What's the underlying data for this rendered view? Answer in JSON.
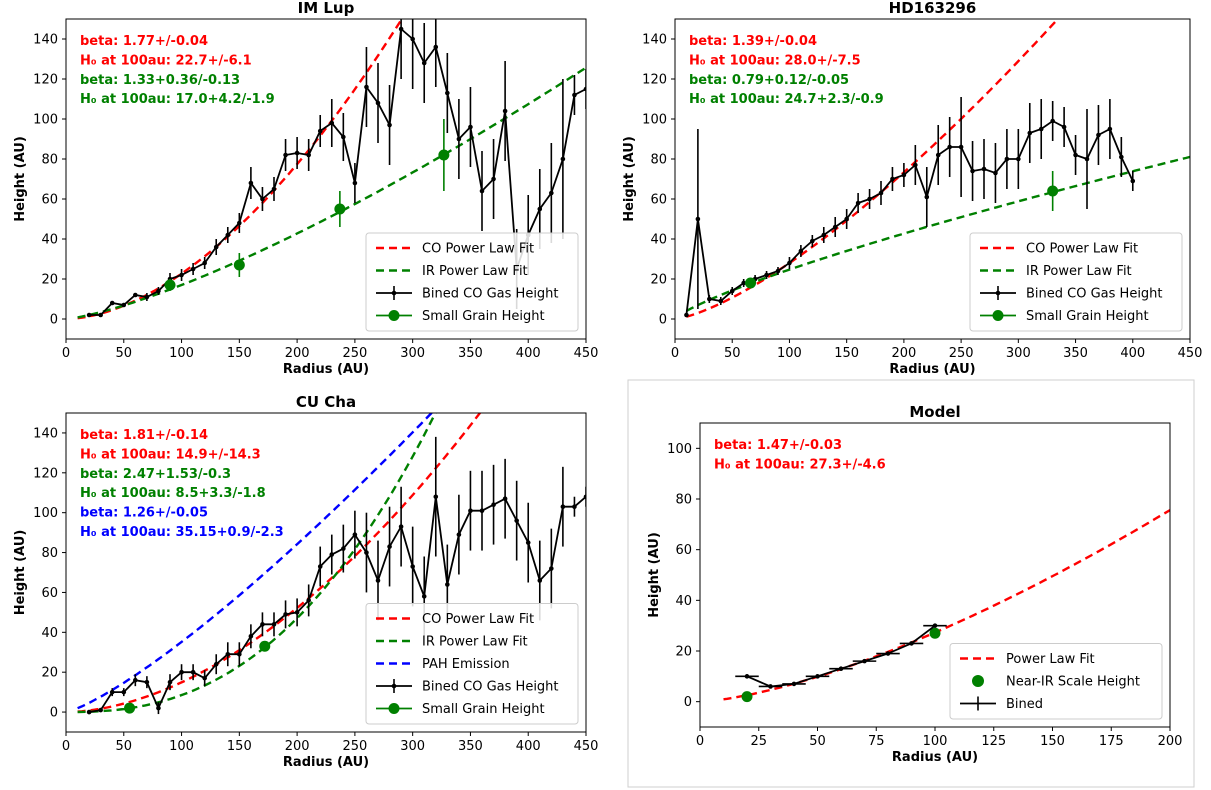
{
  "figure": {
    "model_panel_frame": true
  },
  "chart_data": [
    {
      "type": "line",
      "title": "IM Lup",
      "xlabel": "Radius (AU)",
      "ylabel": "Height (AU)",
      "xlim": [
        0,
        450
      ],
      "ylim": [
        -10,
        150
      ],
      "xticks": [
        0,
        50,
        100,
        150,
        200,
        250,
        300,
        350,
        400,
        450
      ],
      "yticks": [
        0,
        20,
        40,
        60,
        80,
        100,
        120,
        140
      ],
      "annotations": [
        {
          "text": "beta: 1.77+/-0.04",
          "color": "#ff0000"
        },
        {
          "text": "H₀ at 100au: 22.7+/-6.1",
          "color": "#ff0000"
        },
        {
          "text": "beta: 1.33+0.36/-0.13",
          "color": "#008000"
        },
        {
          "text": "H₀ at 100au: 17.0+4.2/-1.9",
          "color": "#008000"
        }
      ],
      "legend": {
        "position": "lower right"
      },
      "series": [
        {
          "name": "CO Power Law Fit",
          "kind": "power",
          "color": "#ff0000",
          "beta": 1.77,
          "h100": 22.7,
          "xrange": [
            10,
            450
          ]
        },
        {
          "name": "IR Power Law Fit",
          "kind": "power",
          "color": "#008000",
          "beta": 1.33,
          "h100": 17.0,
          "xrange": [
            10,
            450
          ]
        },
        {
          "name": "Bined CO Gas Height",
          "kind": "errline",
          "color": "#000000",
          "x": [
            20,
            30,
            40,
            50,
            60,
            70,
            80,
            90,
            100,
            110,
            120,
            130,
            140,
            150,
            160,
            170,
            180,
            190,
            200,
            210,
            220,
            230,
            240,
            250,
            260,
            270,
            280,
            290,
            300,
            310,
            320,
            330,
            340,
            350,
            360,
            370,
            380,
            390,
            400,
            410,
            420,
            430,
            440,
            450
          ],
          "y": [
            2,
            2,
            8,
            7,
            12,
            11,
            14,
            20,
            22,
            25,
            28,
            36,
            42,
            48,
            68,
            60,
            65,
            82,
            83,
            82,
            94,
            98,
            91,
            68,
            116,
            108,
            97,
            145,
            140,
            128,
            136,
            113,
            90,
            96,
            64,
            70,
            104,
            25,
            42,
            55,
            63,
            80,
            112,
            115
          ],
          "err": [
            1,
            1,
            1,
            1,
            1,
            2,
            2,
            3,
            3,
            3,
            3,
            4,
            4,
            5,
            8,
            6,
            6,
            8,
            8,
            8,
            8,
            12,
            12,
            10,
            20,
            20,
            20,
            25,
            25,
            20,
            20,
            20,
            20,
            20,
            20,
            20,
            25,
            20,
            20,
            20,
            25,
            40,
            10,
            10
          ]
        },
        {
          "name": "Small Grain Height",
          "kind": "errpoints",
          "color": "#008000",
          "x": [
            90,
            150,
            237,
            327
          ],
          "y": [
            17,
            27,
            55,
            82
          ],
          "err": [
            3,
            6,
            9,
            18
          ]
        }
      ]
    },
    {
      "type": "line",
      "title": "HD163296",
      "xlabel": "Radius (AU)",
      "ylabel": "Height (AU)",
      "xlim": [
        0,
        450
      ],
      "ylim": [
        -10,
        150
      ],
      "xticks": [
        0,
        50,
        100,
        150,
        200,
        250,
        300,
        350,
        400,
        450
      ],
      "yticks": [
        0,
        20,
        40,
        60,
        80,
        100,
        120,
        140
      ],
      "annotations": [
        {
          "text": "beta: 1.39+/-0.04",
          "color": "#ff0000"
        },
        {
          "text": "H₀ at 100au: 28.0+/-7.5",
          "color": "#ff0000"
        },
        {
          "text": "beta: 0.79+0.12/-0.05",
          "color": "#008000"
        },
        {
          "text": "H₀ at 100au: 24.7+2.3/-0.9",
          "color": "#008000"
        }
      ],
      "legend": {
        "position": "lower right"
      },
      "series": [
        {
          "name": "CO Power Law Fit",
          "kind": "power",
          "color": "#ff0000",
          "beta": 1.39,
          "h100": 28.0,
          "xrange": [
            10,
            450
          ]
        },
        {
          "name": "IR Power Law Fit",
          "kind": "power",
          "color": "#008000",
          "beta": 0.79,
          "h100": 24.7,
          "xrange": [
            10,
            450
          ]
        },
        {
          "name": "Bined CO Gas Height",
          "kind": "errline",
          "color": "#000000",
          "x": [
            10,
            20,
            30,
            40,
            50,
            60,
            70,
            80,
            90,
            100,
            110,
            120,
            130,
            140,
            150,
            160,
            170,
            180,
            190,
            200,
            210,
            220,
            230,
            240,
            250,
            260,
            270,
            280,
            290,
            300,
            310,
            320,
            330,
            340,
            350,
            360,
            370,
            380,
            390,
            400
          ],
          "y": [
            2,
            50,
            10,
            9,
            14,
            18,
            20,
            22,
            24,
            28,
            34,
            39,
            42,
            46,
            50,
            58,
            60,
            63,
            70,
            72,
            77,
            61,
            82,
            86,
            86,
            74,
            75,
            73,
            80,
            80,
            93,
            95,
            99,
            96,
            82,
            80,
            92,
            95,
            81,
            69
          ],
          "err": [
            1,
            45,
            2,
            2,
            2,
            2,
            2,
            2,
            2,
            3,
            3,
            3,
            4,
            5,
            5,
            5,
            5,
            6,
            6,
            6,
            10,
            15,
            15,
            15,
            25,
            15,
            15,
            15,
            15,
            15,
            15,
            15,
            10,
            10,
            10,
            25,
            15,
            15,
            10,
            5
          ]
        },
        {
          "name": "Small Grain Height",
          "kind": "errpoints",
          "color": "#008000",
          "x": [
            66,
            330
          ],
          "y": [
            18,
            64
          ],
          "err": [
            2,
            10
          ]
        }
      ]
    },
    {
      "type": "line",
      "title": "CU Cha",
      "xlabel": "Radius (AU)",
      "ylabel": "Height (AU)",
      "xlim": [
        0,
        450
      ],
      "ylim": [
        -10,
        150
      ],
      "xticks": [
        0,
        50,
        100,
        150,
        200,
        250,
        300,
        350,
        400,
        450
      ],
      "yticks": [
        0,
        20,
        40,
        60,
        80,
        100,
        120,
        140
      ],
      "annotations": [
        {
          "text": "beta: 1.81+/-0.14",
          "color": "#ff0000"
        },
        {
          "text": "H₀ at 100au: 14.9+/-14.3",
          "color": "#ff0000"
        },
        {
          "text": "beta: 2.47+1.53/-0.3",
          "color": "#008000"
        },
        {
          "text": "H₀ at 100au: 8.5+3.3/-1.8",
          "color": "#008000"
        },
        {
          "text": "beta: 1.26+/-0.05",
          "color": "#0000ff"
        },
        {
          "text": "H₀ at 100au: 35.15+0.9/-2.3",
          "color": "#0000ff"
        }
      ],
      "legend": {
        "position": "lower right"
      },
      "series": [
        {
          "name": "CO Power Law Fit",
          "kind": "power",
          "color": "#ff0000",
          "beta": 1.81,
          "h100": 14.9,
          "xrange": [
            10,
            450
          ]
        },
        {
          "name": "IR Power Law Fit",
          "kind": "power",
          "color": "#008000",
          "beta": 2.47,
          "h100": 8.5,
          "xrange": [
            10,
            450
          ]
        },
        {
          "name": "PAH Emission",
          "kind": "power",
          "color": "#0000ff",
          "beta": 1.26,
          "h100": 35.15,
          "xrange": [
            10,
            450
          ]
        },
        {
          "name": "Bined CO Gas Height",
          "kind": "errline",
          "color": "#000000",
          "x": [
            20,
            30,
            40,
            50,
            60,
            70,
            80,
            90,
            100,
            110,
            120,
            130,
            140,
            150,
            160,
            170,
            180,
            190,
            200,
            210,
            220,
            230,
            240,
            250,
            260,
            270,
            280,
            290,
            300,
            310,
            320,
            330,
            340,
            350,
            360,
            370,
            380,
            390,
            400,
            410,
            420,
            430,
            440,
            450
          ],
          "y": [
            0,
            1,
            10,
            10,
            16,
            15,
            2,
            15,
            20,
            20,
            17,
            24,
            29,
            29,
            38,
            44,
            44,
            49,
            50,
            56,
            73,
            79,
            82,
            89,
            80,
            66,
            83,
            93,
            73,
            58,
            108,
            64,
            89,
            101,
            101,
            104,
            107,
            96,
            85,
            66,
            72,
            103,
            103,
            108
          ],
          "err": [
            1,
            1,
            2,
            2,
            3,
            3,
            3,
            4,
            4,
            4,
            4,
            5,
            6,
            6,
            6,
            6,
            6,
            7,
            7,
            8,
            10,
            10,
            12,
            12,
            20,
            20,
            20,
            20,
            20,
            20,
            30,
            20,
            20,
            20,
            20,
            20,
            20,
            20,
            20,
            20,
            20,
            20,
            5,
            5
          ]
        },
        {
          "name": "Small Grain Height",
          "kind": "errpoints",
          "color": "#008000",
          "x": [
            55,
            172
          ],
          "y": [
            2,
            33
          ],
          "err": [
            1,
            2
          ]
        }
      ]
    },
    {
      "type": "line",
      "title": "Model",
      "xlabel": "Radius (AU)",
      "ylabel": "Height (AU)",
      "xlim": [
        0,
        200
      ],
      "ylim": [
        -10,
        110
      ],
      "xticks": [
        0,
        25,
        50,
        75,
        100,
        125,
        150,
        175,
        200
      ],
      "yticks": [
        0,
        20,
        40,
        60,
        80,
        100
      ],
      "annotations": [
        {
          "text": "beta: 1.47+/-0.03",
          "color": "#ff0000"
        },
        {
          "text": "H₀ at 100au: 27.3+/-4.6",
          "color": "#ff0000"
        }
      ],
      "legend": {
        "position": "lower right"
      },
      "series": [
        {
          "name": "Power Law Fit",
          "kind": "power",
          "color": "#ff0000",
          "beta": 1.47,
          "h100": 27.3,
          "xrange": [
            10,
            200
          ]
        },
        {
          "name": "Near-IR Scale Height",
          "kind": "points",
          "color": "#008000",
          "x": [
            20,
            100
          ],
          "y": [
            2,
            27
          ]
        },
        {
          "name": "Bined",
          "kind": "xerrline",
          "color": "#000000",
          "x": [
            20,
            30,
            40,
            50,
            60,
            70,
            80,
            90,
            100
          ],
          "y": [
            10,
            6,
            7,
            10,
            13,
            16,
            19,
            23,
            30
          ],
          "xerr": [
            5,
            5,
            5,
            5,
            5,
            5,
            5,
            5,
            5
          ]
        }
      ]
    }
  ]
}
